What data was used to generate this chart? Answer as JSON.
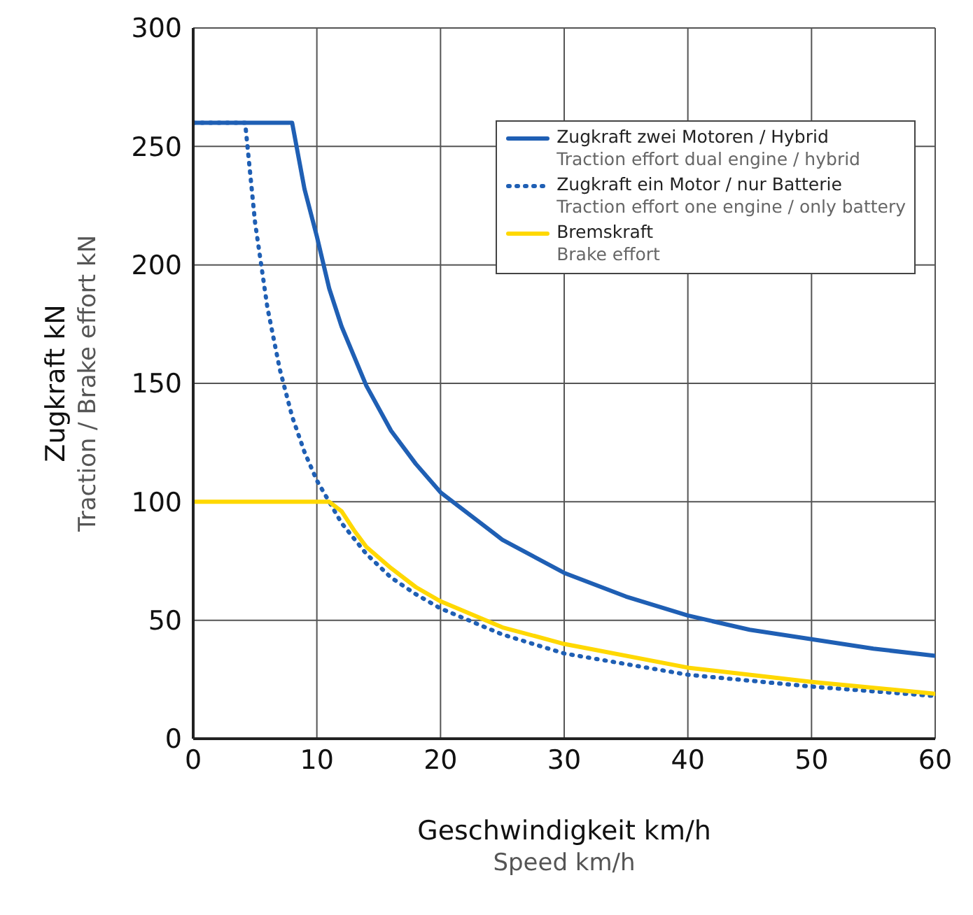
{
  "chart_data": {
    "type": "line",
    "xlabel": "Geschwindigkeit km/h\nSpeed km/h",
    "ylabel": "Zugkraft kN\nTraction / Brake effort kN",
    "xlim": [
      0,
      60
    ],
    "xticks": [
      0,
      10,
      20,
      30,
      40,
      50,
      60
    ],
    "ylim": [
      0,
      300
    ],
    "yticks": [
      0,
      50,
      100,
      150,
      200,
      250,
      300
    ],
    "grid": true,
    "legend": "top right",
    "marker": "none",
    "series": [
      {
        "name": "Zugkraft zwei Motoren / Hybrid\nTraction effort dual engine / hybrid",
        "color": "#1f5fb4",
        "line_style": "solid",
        "x": [
          0,
          8,
          9,
          10,
          11,
          12,
          14,
          16,
          18,
          20,
          25,
          30,
          35,
          40,
          45,
          50,
          55,
          60
        ],
        "values": [
          260,
          260,
          232,
          212,
          190,
          174,
          149,
          130,
          116,
          104,
          84,
          70,
          60,
          52,
          46,
          42,
          38,
          35
        ]
      },
      {
        "name": "Zugkraft ein Motor / nur Batterie\nTraction effort one engine / only battery",
        "color": "#1f5fb4",
        "line_style": "dotted",
        "x": [
          0,
          4.2,
          5,
          6,
          7,
          8,
          9,
          10,
          12,
          14,
          16,
          18,
          20,
          25,
          30,
          40,
          50,
          60
        ],
        "values": [
          260,
          260,
          218,
          182,
          156,
          136,
          121,
          109,
          91,
          78,
          68,
          61,
          55,
          44,
          36,
          27,
          22,
          18
        ]
      },
      {
        "name": "Bremskraft\nBrake effort",
        "color": "#ffd800",
        "line_style": "solid",
        "x": [
          0,
          11,
          12,
          13,
          14,
          16,
          18,
          20,
          25,
          30,
          40,
          50,
          60
        ],
        "values": [
          100,
          100,
          96,
          88,
          81,
          72,
          64,
          58,
          47,
          40,
          30,
          24,
          19
        ]
      }
    ]
  }
}
